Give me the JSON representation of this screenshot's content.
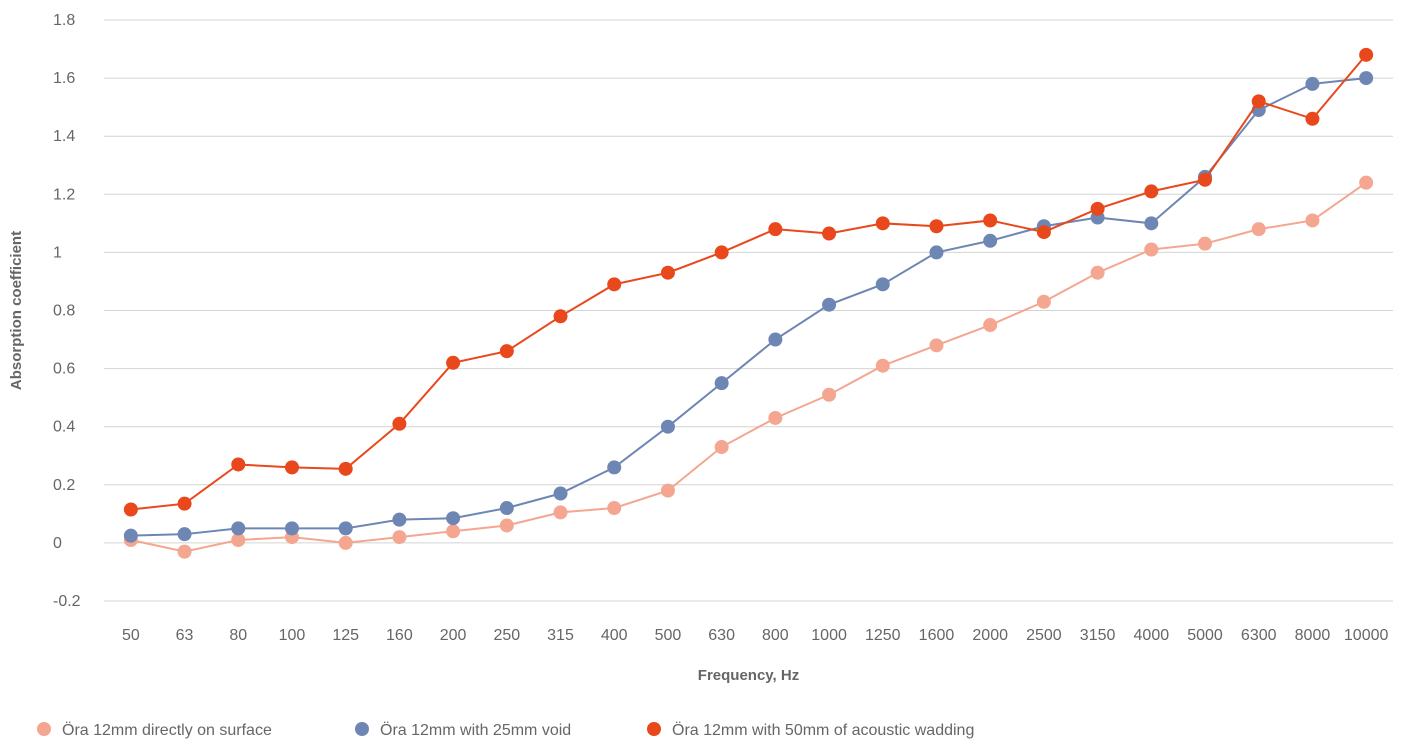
{
  "chart_data": {
    "type": "line",
    "title": "",
    "xlabel": "Frequency, Hz",
    "ylabel": "Absorption coefficient",
    "categories": [
      "50",
      "63",
      "80",
      "100",
      "125",
      "160",
      "200",
      "250",
      "315",
      "400",
      "500",
      "630",
      "800",
      "1000",
      "1250",
      "1600",
      "2000",
      "2500",
      "3150",
      "4000",
      "5000",
      "6300",
      "8000",
      "10000"
    ],
    "ylim": [
      -0.2,
      1.8
    ],
    "yticks": [
      -0.2,
      0,
      0.2,
      0.4,
      0.6,
      0.8,
      1,
      1.2,
      1.4,
      1.6,
      1.8
    ],
    "grid": true,
    "legend_position": "bottom-left",
    "series": [
      {
        "name": "Öra 12mm directly on surface",
        "color": "#f4a690",
        "values": [
          0.01,
          -0.03,
          0.01,
          0.02,
          0.0,
          0.02,
          0.04,
          0.06,
          0.105,
          0.12,
          0.18,
          0.33,
          0.43,
          0.51,
          0.61,
          0.68,
          0.75,
          0.83,
          0.93,
          1.01,
          1.03,
          1.08,
          1.11,
          1.24
        ]
      },
      {
        "name": "Öra 12mm with 25mm void",
        "color": "#6d86b3",
        "values": [
          0.025,
          0.03,
          0.05,
          0.05,
          0.05,
          0.08,
          0.085,
          0.12,
          0.17,
          0.26,
          0.4,
          0.55,
          0.7,
          0.82,
          0.89,
          1.0,
          1.04,
          1.09,
          1.12,
          1.1,
          1.26,
          1.49,
          1.58,
          1.6
        ]
      },
      {
        "name": "Öra 12mm with 50mm of acoustic wadding",
        "color": "#e8481b",
        "values": [
          0.115,
          0.135,
          0.27,
          0.26,
          0.255,
          0.41,
          0.62,
          0.66,
          0.78,
          0.89,
          0.93,
          1.0,
          1.08,
          1.065,
          1.1,
          1.09,
          1.11,
          1.07,
          1.15,
          1.21,
          1.25,
          1.52,
          1.46,
          1.68
        ]
      }
    ]
  }
}
